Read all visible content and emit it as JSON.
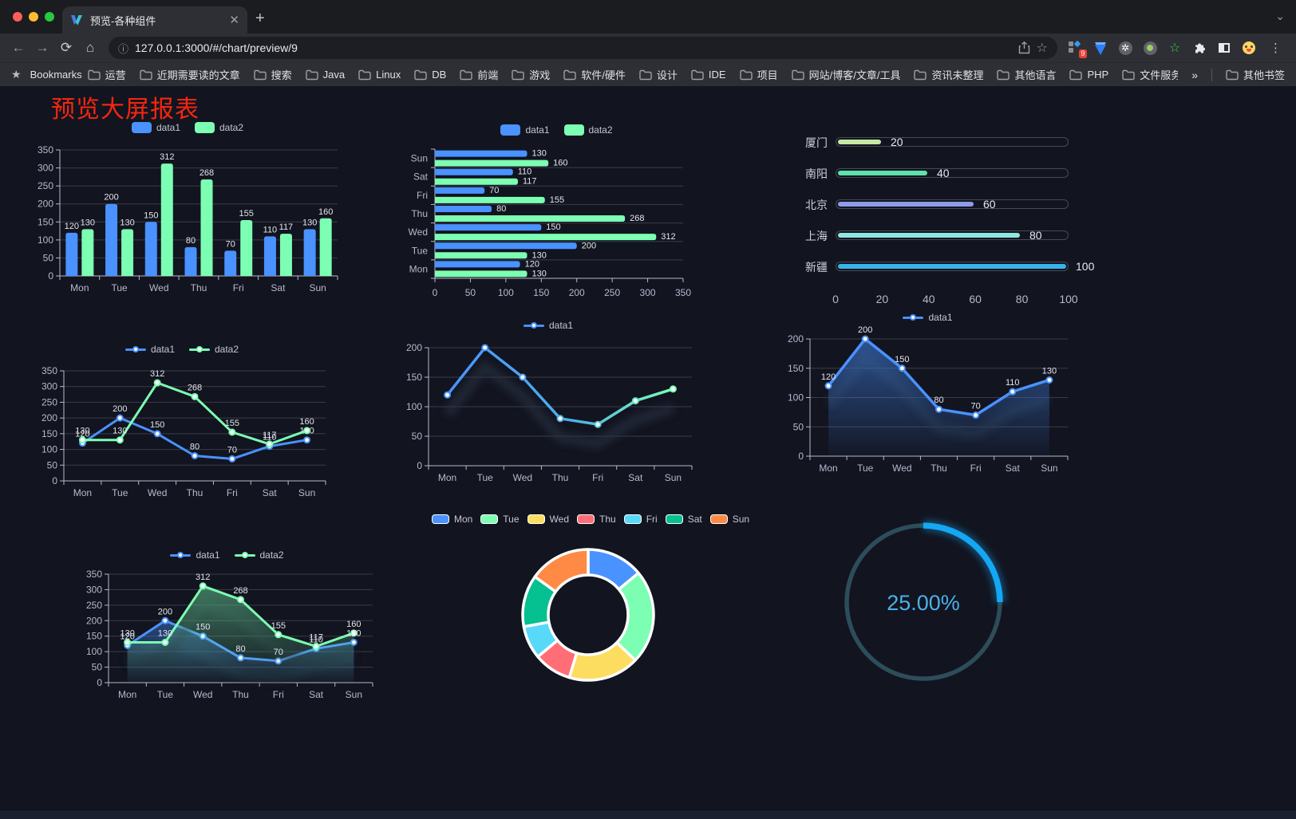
{
  "browser": {
    "tab_title": "预览-各种组件",
    "url": "127.0.0.1:3000/#/chart/preview/9",
    "bookmarks_label": "Bookmarks",
    "bookmarks": [
      "运营",
      "近期需要读的文章",
      "搜索",
      "Java",
      "Linux",
      "DB",
      "前端",
      "游戏",
      "软件/硬件",
      "设计",
      "IDE",
      "项目",
      "网站/博客/文章/工具",
      "资讯未整理",
      "其他语言",
      "PHP",
      "文件服务器"
    ],
    "bookmarks_overflow": "»",
    "other_bookmarks": "其他书签",
    "extension_badge": "9"
  },
  "page": {
    "title": "预览大屏报表",
    "title_color": "#f5260e",
    "background": "#121420"
  },
  "chart_data": [
    {
      "id": "bar-vertical",
      "type": "bar",
      "categories": [
        "Mon",
        "Tue",
        "Wed",
        "Thu",
        "Fri",
        "Sat",
        "Sun"
      ],
      "series": [
        {
          "name": "data1",
          "color": "#4992ff",
          "values": [
            120,
            200,
            150,
            80,
            70,
            110,
            130
          ]
        },
        {
          "name": "data2",
          "color": "#7cffb2",
          "values": [
            130,
            130,
            312,
            268,
            155,
            117,
            160
          ]
        }
      ],
      "ylim": [
        0,
        350
      ],
      "ystep": 50,
      "legend_position": "top",
      "grid": true
    },
    {
      "id": "bar-horizontal",
      "type": "hbar",
      "categories": [
        "Mon",
        "Tue",
        "Wed",
        "Thu",
        "Fri",
        "Sat",
        "Sun"
      ],
      "series": [
        {
          "name": "data1",
          "color": "#4992ff",
          "values": [
            120,
            200,
            150,
            80,
            70,
            110,
            130
          ]
        },
        {
          "name": "data2",
          "color": "#7cffb2",
          "values": [
            130,
            130,
            312,
            268,
            155,
            117,
            160
          ]
        }
      ],
      "xlim": [
        0,
        350
      ],
      "xstep": 50,
      "legend_position": "top"
    },
    {
      "id": "progress-bars",
      "type": "progress",
      "max": 100,
      "axis_ticks": [
        0,
        20,
        40,
        60,
        80,
        100
      ],
      "items": [
        {
          "label": "厦门",
          "value": 20,
          "color": "#c6e8a2"
        },
        {
          "label": "南阳",
          "value": 40,
          "color": "#5fe2ae"
        },
        {
          "label": "北京",
          "value": 60,
          "color": "#8e9be8"
        },
        {
          "label": "上海",
          "value": 80,
          "color": "#8fe7e2"
        },
        {
          "label": "新疆",
          "value": 100,
          "color": "#35b5e9"
        }
      ]
    },
    {
      "id": "line-two-series",
      "type": "line",
      "categories": [
        "Mon",
        "Tue",
        "Wed",
        "Thu",
        "Fri",
        "Sat",
        "Sun"
      ],
      "series": [
        {
          "name": "data1",
          "color": "#4992ff",
          "values": [
            120,
            200,
            150,
            80,
            70,
            110,
            130
          ]
        },
        {
          "name": "data2",
          "color": "#7cffb2",
          "values": [
            130,
            130,
            312,
            268,
            155,
            117,
            160
          ]
        }
      ],
      "ylim": [
        0,
        350
      ],
      "ystep": 50,
      "labels": true
    },
    {
      "id": "line-gradient",
      "type": "line-gradient",
      "categories": [
        "Mon",
        "Tue",
        "Wed",
        "Thu",
        "Fri",
        "Sat",
        "Sun"
      ],
      "series": [
        {
          "name": "data1",
          "values": [
            120,
            200,
            150,
            80,
            70,
            110,
            130
          ]
        }
      ],
      "gradient": [
        "#4992ff",
        "#4cb0e8",
        "#7cffb2"
      ],
      "marker_colors": [
        "#4992ff",
        "#4992ff",
        "#4f9ef5",
        "#55b5e3",
        "#5cc9d2",
        "#68e4c0",
        "#7cffb2"
      ],
      "ylim": [
        0,
        200
      ],
      "ystep": 50,
      "labels": false
    },
    {
      "id": "area-single",
      "type": "area",
      "categories": [
        "Mon",
        "Tue",
        "Wed",
        "Thu",
        "Fri",
        "Sat",
        "Sun"
      ],
      "series": [
        {
          "name": "data1",
          "color": "#4992ff",
          "values": [
            120,
            200,
            150,
            80,
            70,
            110,
            130
          ]
        }
      ],
      "ylim": [
        0,
        200
      ],
      "ystep": 50,
      "labels": true
    },
    {
      "id": "area-two-series",
      "type": "area2",
      "categories": [
        "Mon",
        "Tue",
        "Wed",
        "Thu",
        "Fri",
        "Sat",
        "Sun"
      ],
      "series": [
        {
          "name": "data1",
          "color": "#4992ff",
          "values": [
            120,
            200,
            150,
            80,
            70,
            110,
            130
          ]
        },
        {
          "name": "data2",
          "color": "#7cffb2",
          "values": [
            130,
            130,
            312,
            268,
            155,
            117,
            160
          ]
        }
      ],
      "ylim": [
        0,
        350
      ],
      "ystep": 50,
      "labels": true
    },
    {
      "id": "doughnut",
      "type": "doughnut",
      "labels": [
        "Mon",
        "Tue",
        "Wed",
        "Thu",
        "Fri",
        "Sat",
        "Sun"
      ],
      "values": [
        120,
        200,
        150,
        80,
        70,
        110,
        130
      ],
      "colors": [
        "#4992ff",
        "#7cffb2",
        "#fddd60",
        "#ff6e76",
        "#58d9f9",
        "#05c091",
        "#ff8a45"
      ],
      "border_color": "#ffffff"
    },
    {
      "id": "gauge",
      "type": "gauge",
      "value": 25,
      "display": "25.00%",
      "color": "#14a7f3",
      "track_color": "#2c4d59",
      "text_color": "#49b1e9"
    }
  ]
}
